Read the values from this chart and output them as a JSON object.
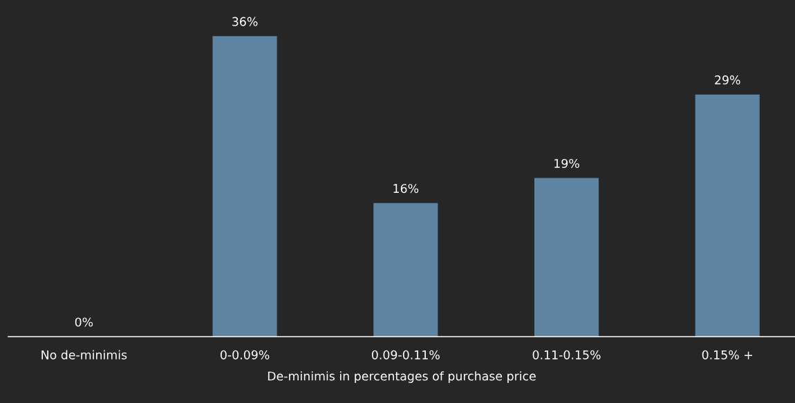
{
  "chart_data": {
    "type": "bar",
    "xlabel": "De-minimis in percentages of purchase price",
    "categories": [
      "No de-minimis",
      "0-0.09%",
      "0.09-0.11%",
      "0.11-0.15%",
      "0.15% +"
    ],
    "values": [
      0,
      36,
      16,
      19,
      29
    ],
    "value_labels": [
      "0%",
      "36%",
      "16%",
      "19%",
      "29%"
    ],
    "color": "#5f84a2",
    "grid": false,
    "legend": false
  }
}
